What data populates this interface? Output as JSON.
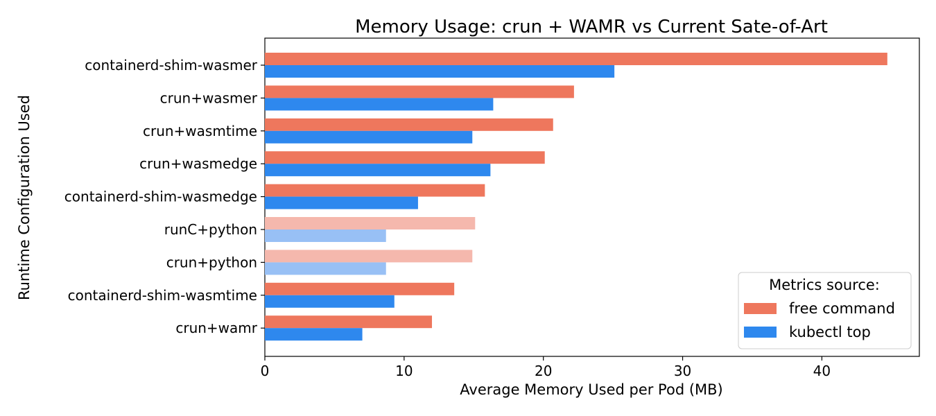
{
  "chart_data": {
    "type": "bar",
    "orientation": "horizontal",
    "title": "Memory Usage: crun + WAMR vs Current Sate-of-Art",
    "xlabel": "Average Memory Used per Pod (MB)",
    "ylabel": "Runtime Configuration Used",
    "xlim": [
      0,
      47
    ],
    "xticks": [
      0,
      10,
      20,
      30,
      40
    ],
    "categories": [
      "containerd-shim-wasmer",
      "crun+wasmer",
      "crun+wasmtime",
      "crun+wasmedge",
      "containerd-shim-wasmedge",
      "runC+python",
      "crun+python",
      "containerd-shim-wasmtime",
      "crun+wamr"
    ],
    "highlight_category": "crun+wamr",
    "faded_categories": [
      "runC+python",
      "crun+python"
    ],
    "series": [
      {
        "name": "free command",
        "color": "#ee775d",
        "faded_color": "#f5b8ad",
        "values": [
          44.7,
          22.2,
          20.7,
          20.1,
          15.8,
          15.1,
          14.9,
          13.6,
          12.0
        ]
      },
      {
        "name": "kubectl top",
        "color": "#2e88ee",
        "faded_color": "#98c0f5",
        "values": [
          25.1,
          16.4,
          14.9,
          16.2,
          11.0,
          8.7,
          8.7,
          9.3,
          7.0
        ]
      }
    ],
    "legend": {
      "title": "Metrics source:",
      "placement": "lower-right"
    },
    "highlight_color": "#008000",
    "grid": false
  }
}
